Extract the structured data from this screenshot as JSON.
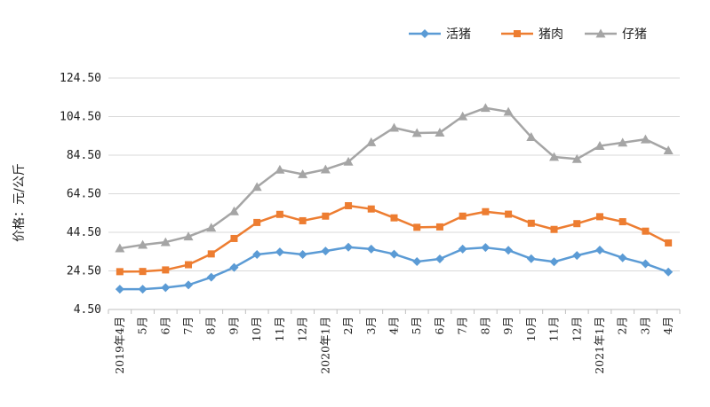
{
  "chart_data": {
    "type": "line",
    "ylabel": "价格：元/公斤",
    "ylim": [
      4.5,
      124.5
    ],
    "yticks": [
      "4.50",
      "24.50",
      "44.50",
      "64.50",
      "84.50",
      "104.50",
      "124.50"
    ],
    "yticks_values": [
      4.5,
      24.5,
      44.5,
      64.5,
      84.5,
      104.5,
      124.5
    ],
    "categories": [
      "2019年4月",
      "5月",
      "6月",
      "7月",
      "8月",
      "9月",
      "10月",
      "11月",
      "12月",
      "2020年1月",
      "2月",
      "3月",
      "4月",
      "5月",
      "6月",
      "7月",
      "8月",
      "9月",
      "10月",
      "11月",
      "12月",
      "2021年1月",
      "2月",
      "3月",
      "4月"
    ],
    "grid": true,
    "legend_position": "top-right",
    "series": [
      {
        "name": "活猪",
        "color": "#5B9BD5",
        "marker": "diamond",
        "values": [
          15.0,
          15.0,
          15.8,
          17.2,
          21.2,
          26.3,
          33.0,
          34.3,
          33.0,
          34.8,
          36.8,
          35.8,
          33.2,
          29.3,
          30.7,
          35.8,
          36.6,
          35.2,
          30.8,
          29.2,
          32.5,
          35.3,
          31.3,
          28.2,
          23.9
        ]
      },
      {
        "name": "猪肉",
        "color": "#ED7D31",
        "marker": "square",
        "values": [
          24.1,
          24.2,
          25.0,
          27.7,
          33.3,
          41.3,
          49.6,
          53.8,
          50.5,
          52.9,
          58.3,
          56.6,
          52.0,
          47.1,
          47.3,
          52.9,
          55.2,
          53.9,
          49.2,
          46.0,
          49.0,
          52.6,
          50.0,
          45.1,
          39.0
        ]
      },
      {
        "name": "仔猪",
        "color": "#A5A5A5",
        "marker": "triangle",
        "values": [
          36.2,
          38.0,
          39.4,
          42.3,
          46.9,
          55.4,
          68.0,
          77.0,
          74.6,
          77.1,
          81.1,
          91.2,
          98.7,
          96.0,
          96.2,
          104.6,
          109.0,
          107.0,
          93.9,
          83.6,
          82.5,
          89.3,
          91.0,
          92.7,
          87.0
        ]
      }
    ]
  }
}
